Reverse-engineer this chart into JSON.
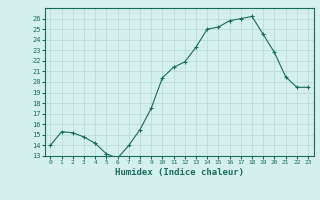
{
  "x": [
    0,
    1,
    2,
    3,
    4,
    5,
    6,
    7,
    8,
    9,
    10,
    11,
    12,
    13,
    14,
    15,
    16,
    17,
    18,
    19,
    20,
    21,
    22,
    23
  ],
  "y": [
    14.0,
    15.3,
    15.2,
    14.8,
    14.2,
    13.2,
    12.8,
    14.0,
    15.5,
    17.5,
    20.4,
    21.4,
    21.9,
    23.3,
    25.0,
    25.2,
    25.8,
    26.0,
    26.2,
    24.5,
    22.8,
    20.5,
    19.5,
    19.5
  ],
  "xlabel": "Humidex (Indice chaleur)",
  "xlim": [
    -0.5,
    23.5
  ],
  "ylim": [
    13,
    27
  ],
  "yticks": [
    13,
    14,
    15,
    16,
    17,
    18,
    19,
    20,
    21,
    22,
    23,
    24,
    25,
    26
  ],
  "xticks": [
    0,
    1,
    2,
    3,
    4,
    5,
    6,
    7,
    8,
    9,
    10,
    11,
    12,
    13,
    14,
    15,
    16,
    17,
    18,
    19,
    20,
    21,
    22,
    23
  ],
  "line_color": "#1a6b5e",
  "marker": "+",
  "bg_color": "#d4f0ec",
  "grid_color": "#b8d8d4",
  "tick_color": "#1a6b5e",
  "label_color": "#1a6b5e",
  "font": "monospace"
}
